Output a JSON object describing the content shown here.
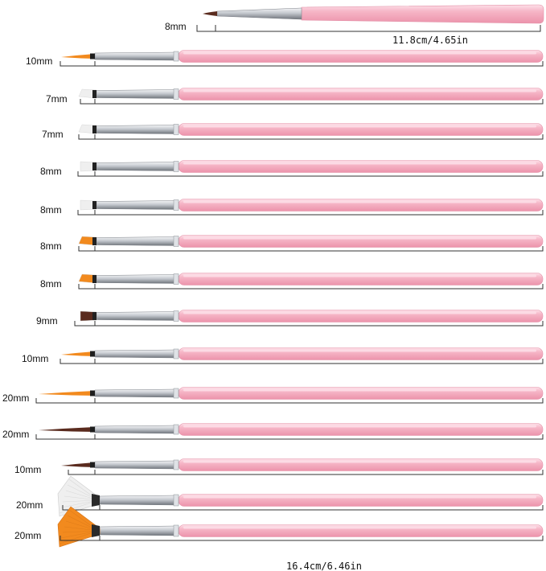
{
  "colors": {
    "handle": "#f4a8bd",
    "handle_highlight": "#fde0e8",
    "ferrule": "#b9bdc4",
    "ferrule_highlight": "#f2f3f5",
    "bristle_white": "#efefef",
    "bristle_orange": "#f28a1e",
    "bristle_brown": "#5a2b1e",
    "bracket": "#333333"
  },
  "top_brush": {
    "head_label": "8mm",
    "length_label": "11.8cm/4.65in",
    "bristle_color": "brown",
    "shape": "liner"
  },
  "brushes": [
    {
      "label": "10mm",
      "shape": "liner",
      "bristle_color": "orange"
    },
    {
      "label": "7mm",
      "shape": "angled",
      "bristle_color": "white"
    },
    {
      "label": "7mm",
      "shape": "angled",
      "bristle_color": "white"
    },
    {
      "label": "8mm",
      "shape": "flat",
      "bristle_color": "white"
    },
    {
      "label": "8mm",
      "shape": "flat",
      "bristle_color": "white"
    },
    {
      "label": "8mm",
      "shape": "angled",
      "bristle_color": "orange"
    },
    {
      "label": "8mm",
      "shape": "angled",
      "bristle_color": "orange"
    },
    {
      "label": "9mm",
      "shape": "flat",
      "bristle_color": "brown"
    },
    {
      "label": "10mm",
      "shape": "liner",
      "bristle_color": "orange"
    },
    {
      "label": "20mm",
      "shape": "liner",
      "bristle_color": "orange"
    },
    {
      "label": "20mm",
      "shape": "liner",
      "bristle_color": "brown"
    },
    {
      "label": "10mm",
      "shape": "liner",
      "bristle_color": "brown"
    },
    {
      "label": "20mm",
      "shape": "fan",
      "bristle_color": "white"
    },
    {
      "label": "20mm",
      "shape": "fan",
      "bristle_color": "orange"
    }
  ],
  "bottom_length_label": "16.4cm/6.46in"
}
